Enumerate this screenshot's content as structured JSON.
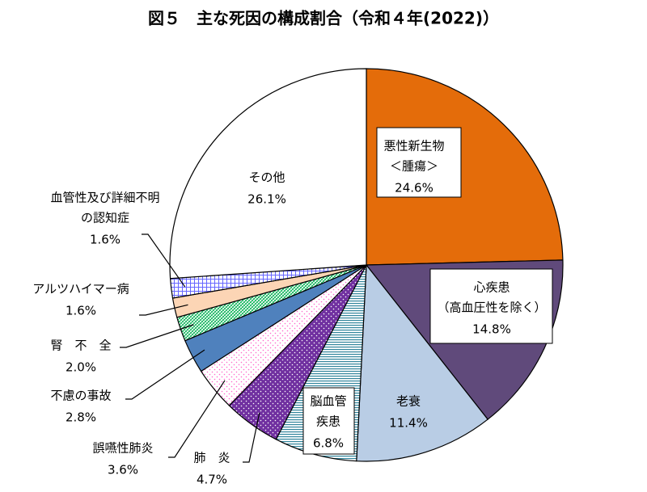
{
  "chart_data": {
    "type": "pie",
    "title": "図５　主な死因の構成割合（令和４年(2022)）",
    "categories": [
      [
        "悪性新生物",
        "＜腫瘍＞"
      ],
      [
        "心疾患",
        "（高血圧性を除く）"
      ],
      [
        "老衰"
      ],
      [
        "脳血管",
        "疾患"
      ],
      [
        "肺　炎"
      ],
      [
        "誤嚥性肺炎"
      ],
      [
        "不慮の事故"
      ],
      [
        "腎　不　全"
      ],
      [
        "アルツハイマー病"
      ],
      [
        "血管性及び詳細不明",
        "の認知症"
      ],
      [
        "その他"
      ]
    ],
    "values": [
      24.6,
      14.8,
      11.4,
      6.8,
      4.7,
      3.6,
      2.8,
      2.0,
      1.6,
      1.6,
      26.1
    ],
    "value_labels": [
      "24.6%",
      "14.8%",
      "11.4%",
      "6.8%",
      "4.7%",
      "3.6%",
      "2.8%",
      "2.0%",
      "1.6%",
      "1.6%",
      "26.1%"
    ],
    "colors": [
      "#e46c0a",
      "#604a7b",
      "#b9cde5",
      "#31859c",
      "#7030a0",
      "#ff66cc",
      "#4f81bd",
      "#00b050",
      "#fcd5b5",
      "#6666ff",
      "#ffffff"
    ],
    "fills": [
      "solid",
      "solid",
      "solid",
      "hlines",
      "dots-on-color",
      "dots",
      "solid",
      "diagonal",
      "solid",
      "grid",
      "solid"
    ]
  }
}
